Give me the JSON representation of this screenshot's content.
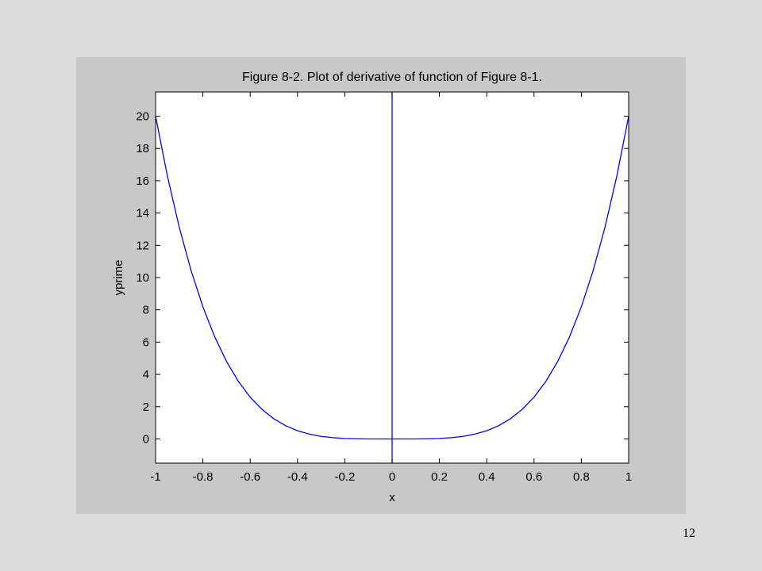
{
  "slide": {
    "number": "12"
  },
  "chart_data": {
    "type": "line",
    "title": "Figure 8-2. Plot of derivative of function of Figure 8-1.",
    "xlabel": "x",
    "ylabel": "yprime",
    "xlim": [
      -1,
      1
    ],
    "ylim": [
      -1.5,
      21.5
    ],
    "grid": false,
    "xticks": [
      "-1",
      "-0.8",
      "-0.6",
      "-0.4",
      "-0.2",
      "0",
      "0.2",
      "0.4",
      "0.6",
      "0.8",
      "1"
    ],
    "yticks": [
      "0",
      "2",
      "4",
      "6",
      "8",
      "10",
      "12",
      "14",
      "16",
      "18",
      "20"
    ],
    "series": [
      {
        "color": "#0000ff",
        "x": [
          -1,
          -0.95,
          -0.9,
          -0.85,
          -0.8,
          -0.75,
          -0.7,
          -0.65,
          -0.6,
          -0.55,
          -0.5,
          -0.45,
          -0.4,
          -0.35,
          -0.3,
          -0.25,
          -0.2,
          -0.15,
          -0.1,
          -0.05,
          0,
          0.05,
          0.1,
          0.15,
          0.2,
          0.25,
          0.3,
          0.35,
          0.4,
          0.45,
          0.5,
          0.55,
          0.6,
          0.65,
          0.7,
          0.75,
          0.8,
          0.85,
          0.9,
          0.95,
          1
        ],
        "y": [
          20,
          16.29,
          13.12,
          10.44,
          8.19,
          6.33,
          4.8,
          3.57,
          2.59,
          1.83,
          1.25,
          0.82,
          0.51,
          0.3,
          0.16,
          0.08,
          0.03,
          0.01,
          0,
          0,
          0,
          0,
          0,
          0.01,
          0.03,
          0.08,
          0.16,
          0.3,
          0.51,
          0.82,
          1.25,
          1.83,
          2.59,
          3.57,
          4.8,
          6.33,
          8.19,
          10.44,
          13.12,
          16.29,
          20
        ]
      },
      {
        "color": "#0000ff",
        "x": [
          0,
          0
        ],
        "y": [
          -1.5,
          21.5
        ]
      }
    ]
  }
}
